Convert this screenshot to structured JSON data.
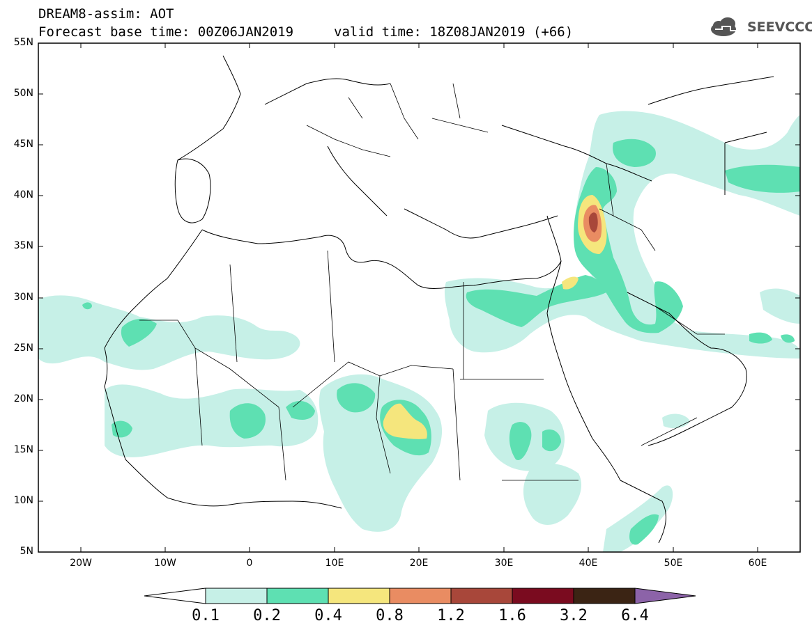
{
  "header": {
    "title": "DREAM8-assim: AOT",
    "base_time": "Forecast base time: 00Z06JAN2019",
    "valid_time": "valid time: 18Z08JAN2019 (+66)",
    "logo_text": "SEEVCCC"
  },
  "map": {
    "variable": "AOT",
    "lat_labels": [
      "55N",
      "50N",
      "45N",
      "40N",
      "35N",
      "30N",
      "25N",
      "20N",
      "15N",
      "10N",
      "5N"
    ],
    "lon_labels": [
      "20W",
      "10W",
      "0",
      "10E",
      "20E",
      "30E",
      "40E",
      "50E",
      "60E"
    ],
    "lon_range": [
      -25,
      65
    ],
    "lat_range": [
      5,
      55
    ]
  },
  "colorbar": {
    "levels": [
      "0.1",
      "0.2",
      "0.4",
      "0.8",
      "1.2",
      "1.6",
      "3.2",
      "6.4"
    ],
    "colors": [
      "#c6f0e7",
      "#5ee0b2",
      "#f5e67d",
      "#e98c62",
      "#a8473a",
      "#7a0b1f",
      "#3b2414",
      "#8c63a8"
    ]
  },
  "colors": {
    "c1": "#c6f0e7",
    "c2": "#5ee0b2",
    "c3": "#f5e67d",
    "c4": "#e98c62",
    "c5": "#a8473a"
  }
}
